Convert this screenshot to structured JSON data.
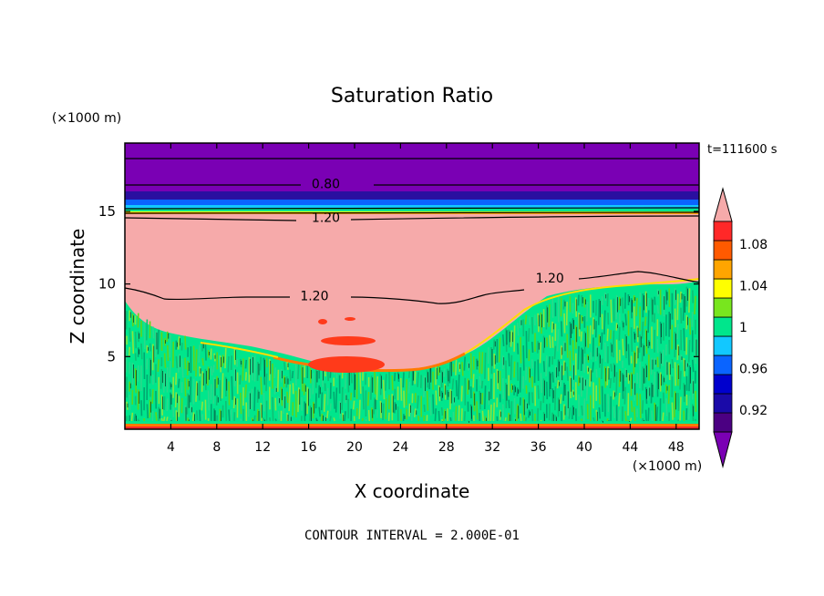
{
  "chart_data": {
    "type": "heatmap",
    "title": "Saturation Ratio",
    "xlabel": "X coordinate",
    "ylabel": "Z coordinate",
    "x_unit": "(×1000 m)",
    "z_unit": "(×1000 m)",
    "time_label": "t=111600 s",
    "contour_interval": "CONTOUR INTERVAL = 2.000E-01",
    "x_range": [
      0,
      50
    ],
    "z_range": [
      0,
      19.7
    ],
    "x_ticks": [
      4,
      8,
      12,
      16,
      20,
      24,
      28,
      32,
      36,
      40,
      44,
      48
    ],
    "z_ticks": [
      5,
      10,
      15
    ],
    "contour_labels": [
      {
        "value": "0.80",
        "x": 17.5,
        "z": 16.9
      },
      {
        "value": "1.20",
        "x": 17.5,
        "z": 14.6
      },
      {
        "value": "1.20",
        "x": 16.5,
        "z": 9.2
      },
      {
        "value": "1.20",
        "x": 37.0,
        "z": 10.4
      }
    ],
    "colorbar": {
      "levels": [
        0.9,
        0.92,
        0.94,
        0.96,
        0.98,
        1.0,
        1.02,
        1.04,
        1.06,
        1.08,
        1.1
      ],
      "tick_labels": [
        "1.08",
        "1.04",
        "1",
        "0.96",
        "0.92"
      ],
      "colors": [
        "#4b0082",
        "#1a0aa8",
        "#0000cd",
        "#0a64ff",
        "#12c8ff",
        "#00e68c",
        "#78e61e",
        "#ffff00",
        "#ffa500",
        "#ff5a00",
        "#ff2828"
      ],
      "over_color": "#f6aaaa",
      "under_color": "#7a00b4"
    },
    "fields": {
      "upper_layer_color": "#7a00b4",
      "supersaturated_color": "#f6aaaa",
      "cloud_base_color": "#00e68c",
      "cloud_mix_color": "#78e61e"
    }
  }
}
